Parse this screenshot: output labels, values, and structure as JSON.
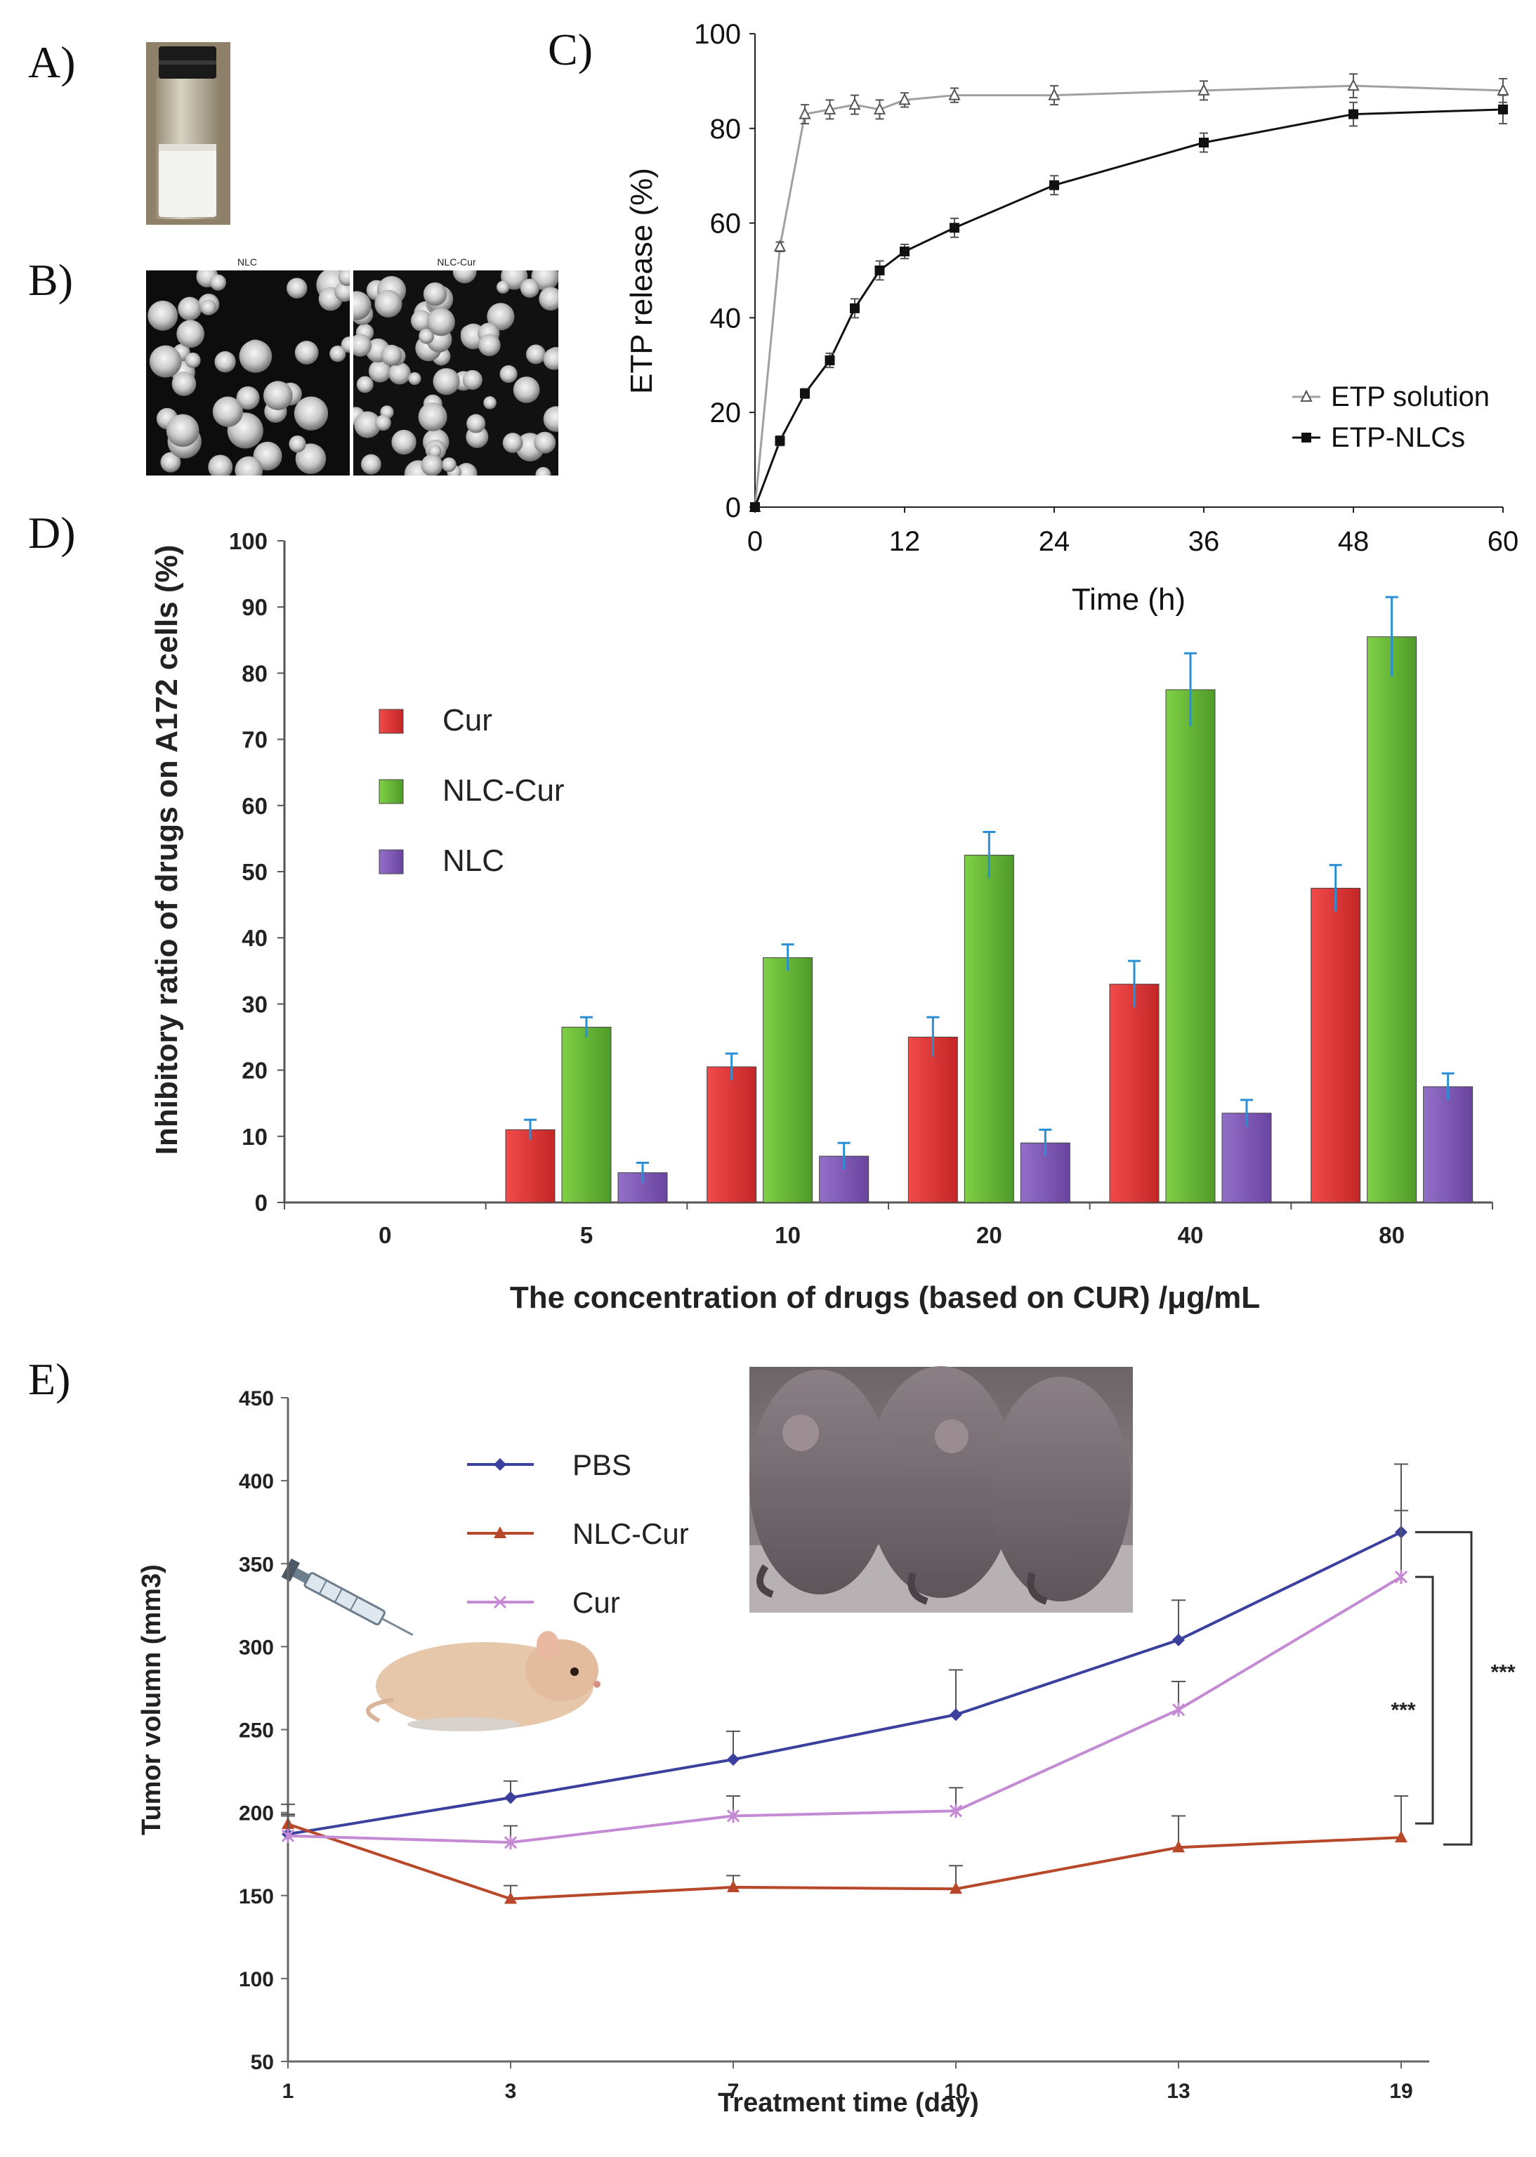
{
  "panels": {
    "a": "A)",
    "b": "B)",
    "c": "C)",
    "d": "D)",
    "e": "E)"
  },
  "tem_labels": {
    "left": "NLC",
    "right": "NLC-Cur"
  },
  "colors": {
    "cur": "#e03a3a",
    "nlc_cur": "#6cbf3a",
    "nlc": "#7f57b6",
    "error_d": "#2b8fd6",
    "pbs": "#3b3f9e",
    "nlc_cur_line": "#b8482a",
    "cur_line": "#c58ad4"
  },
  "chart_data": [
    {
      "panel": "C",
      "type": "line",
      "xlabel": "Time (h)",
      "ylabel": "ETP release  (%)",
      "xlim": [
        0,
        60
      ],
      "ylim": [
        0,
        100
      ],
      "xticks": [
        "0",
        "12",
        "24",
        "36",
        "48",
        "60"
      ],
      "yticks": [
        "0",
        "20",
        "40",
        "60",
        "80",
        "100"
      ],
      "legend_position": "bottom-right",
      "series": [
        {
          "name": "ETP solution",
          "x": [
            0,
            2,
            4,
            6,
            8,
            10,
            12,
            16,
            24,
            36,
            48,
            60
          ],
          "y": [
            0,
            55,
            83,
            84,
            85,
            84,
            86,
            87,
            87,
            88,
            89,
            88
          ],
          "err": [
            0,
            1,
            2,
            2,
            2,
            2,
            1.5,
            1.5,
            2,
            2,
            2.5,
            2.5
          ]
        },
        {
          "name": "ETP-NLCs",
          "x": [
            0,
            2,
            4,
            6,
            8,
            10,
            12,
            16,
            24,
            36,
            48,
            60
          ],
          "y": [
            0,
            14,
            24,
            31,
            42,
            50,
            54,
            59,
            68,
            77,
            83,
            84
          ],
          "err": [
            0,
            1,
            1,
            1.5,
            2,
            2,
            1.5,
            2,
            2,
            2,
            2.5,
            3
          ]
        }
      ]
    },
    {
      "panel": "D",
      "type": "bar",
      "xlabel": "The concentration of drugs (based on CUR) /μg/mL",
      "ylabel": "Inhibitory ratio of drugs on A172 cells (%)",
      "categories": [
        "0",
        "5",
        "10",
        "20",
        "40",
        "80"
      ],
      "ylim": [
        0,
        100
      ],
      "yticks": [
        "0",
        "10",
        "20",
        "30",
        "40",
        "50",
        "60",
        "70",
        "80",
        "90",
        "100"
      ],
      "legend_position": "top-left",
      "series": [
        {
          "name": "Cur",
          "values": [
            0,
            11,
            20.5,
            25,
            33,
            47.5
          ],
          "err": [
            0,
            1.5,
            2,
            3,
            3.5,
            3.5
          ]
        },
        {
          "name": "NLC-Cur",
          "values": [
            0,
            26.5,
            37,
            52.5,
            77.5,
            85.5
          ],
          "err": [
            0,
            1.5,
            2,
            3.5,
            5.5,
            6
          ]
        },
        {
          "name": "NLC",
          "values": [
            0,
            4.5,
            7,
            9,
            13.5,
            17.5
          ],
          "err": [
            0,
            1.5,
            2,
            2,
            2,
            2
          ]
        }
      ]
    },
    {
      "panel": "E",
      "type": "line",
      "xlabel": "Treatment time (day)",
      "ylabel": "Tumor volumn (mm3)",
      "categories": [
        "1",
        "3",
        "7",
        "10",
        "13",
        "19"
      ],
      "ylim": [
        50,
        450
      ],
      "yticks": [
        "50",
        "100",
        "150",
        "200",
        "250",
        "300",
        "350",
        "400",
        "450"
      ],
      "legend_position": "top-left",
      "significance": [
        "***",
        "***"
      ],
      "series": [
        {
          "name": "PBS",
          "values": [
            187,
            209,
            232,
            259,
            304,
            369
          ],
          "err": [
            12,
            10,
            17,
            27,
            24,
            41
          ]
        },
        {
          "name": "NLC-Cur",
          "values": [
            193,
            148,
            155,
            154,
            179,
            185
          ],
          "err": [
            12,
            8,
            7,
            14,
            19,
            25
          ]
        },
        {
          "name": "Cur",
          "values": [
            186,
            182,
            198,
            201,
            262,
            342
          ],
          "err": [
            12,
            10,
            12,
            14,
            17,
            40
          ]
        }
      ]
    }
  ]
}
